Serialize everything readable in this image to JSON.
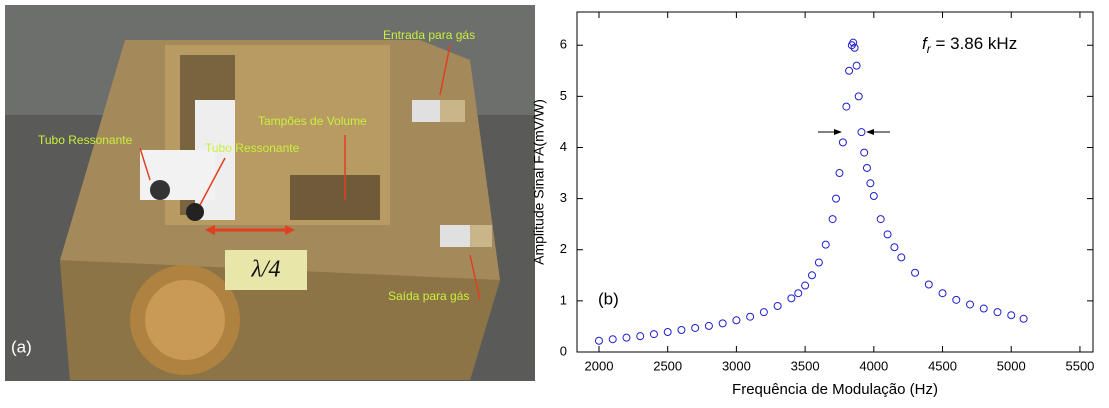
{
  "photo": {
    "panel_label": "(a)",
    "labels": [
      "Entrada para gás",
      "Tubo Ressonante",
      "Tubo Ressonante",
      "Tampões de Volume",
      "Saída para gás"
    ],
    "lambda_label": "λ/4"
  },
  "chart_data": {
    "type": "scatter",
    "panel_label": "(b)",
    "annotation": {
      "symbol": "f",
      "subscript": "r",
      "text": " = 3.86 kHz"
    },
    "x_label": "Frequência de Modulação (Hz)",
    "y_label": "Amplitude Sinal FA(mV/W)",
    "color": "#1f1fd0",
    "x": [
      2000,
      2100,
      2200,
      2300,
      2400,
      2500,
      2600,
      2700,
      2800,
      2900,
      3000,
      3100,
      3200,
      3300,
      3400,
      3450,
      3500,
      3550,
      3600,
      3650,
      3700,
      3725,
      3750,
      3775,
      3800,
      3820,
      3840,
      3850,
      3860,
      3875,
      3890,
      3910,
      3930,
      3950,
      3975,
      4000,
      4050,
      4100,
      4150,
      4200,
      4300,
      4400,
      4500,
      4600,
      4700,
      4800,
      4900,
      5000,
      5090
    ],
    "values": [
      0.22,
      0.25,
      0.28,
      0.31,
      0.35,
      0.39,
      0.43,
      0.47,
      0.51,
      0.56,
      0.62,
      0.69,
      0.78,
      0.9,
      1.05,
      1.15,
      1.3,
      1.5,
      1.75,
      2.1,
      2.6,
      3.0,
      3.5,
      4.1,
      4.8,
      5.5,
      6.0,
      6.05,
      5.95,
      5.6,
      5.0,
      4.3,
      3.9,
      3.6,
      3.3,
      3.05,
      2.6,
      2.3,
      2.05,
      1.85,
      1.55,
      1.32,
      1.15,
      1.02,
      0.93,
      0.85,
      0.78,
      0.72,
      0.65
    ],
    "xlim": [
      1840,
      5595
    ],
    "ylim": [
      0,
      6.65
    ],
    "xticks": [
      2000,
      2500,
      3000,
      3500,
      4000,
      4500,
      5000,
      5500
    ],
    "yticks": [
      0,
      1,
      2,
      3,
      4,
      5,
      6
    ]
  }
}
